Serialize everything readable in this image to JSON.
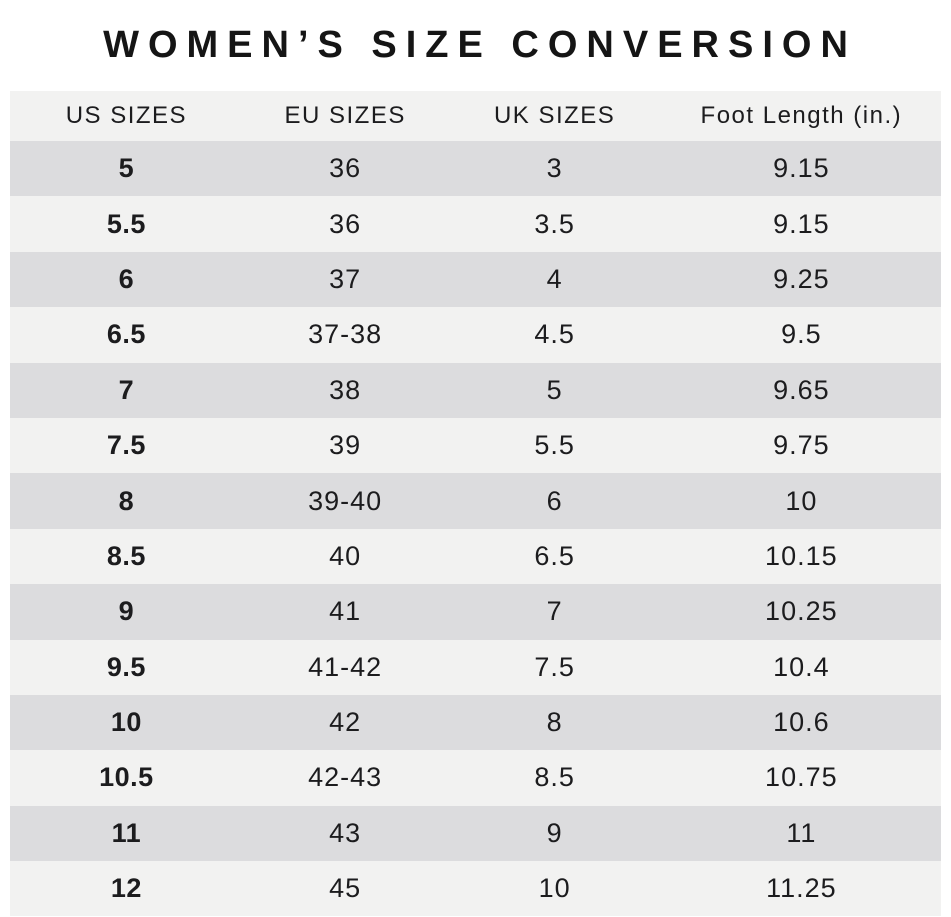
{
  "chart_data": {
    "type": "table",
    "title": "WOMEN’S SIZE CONVERSION",
    "columns": [
      "US SIZES",
      "EU SIZES",
      "UK SIZES",
      "Foot Length (in.)"
    ],
    "rows": [
      [
        "5",
        "36",
        "3",
        "9.15"
      ],
      [
        "5.5",
        "36",
        "3.5",
        "9.15"
      ],
      [
        "6",
        "37",
        "4",
        "9.25"
      ],
      [
        "6.5",
        "37-38",
        "4.5",
        "9.5"
      ],
      [
        "7",
        "38",
        "5",
        "9.65"
      ],
      [
        "7.5",
        "39",
        "5.5",
        "9.75"
      ],
      [
        "8",
        "39-40",
        "6",
        "10"
      ],
      [
        "8.5",
        "40",
        "6.5",
        "10.15"
      ],
      [
        "9",
        "41",
        "7",
        "10.25"
      ],
      [
        "9.5",
        "41-42",
        "7.5",
        "10.4"
      ],
      [
        "10",
        "42",
        "8",
        "10.6"
      ],
      [
        "10.5",
        "42-43",
        "8.5",
        "10.75"
      ],
      [
        "11",
        "43",
        "9",
        "11"
      ],
      [
        "12",
        "45",
        "10",
        "11.25"
      ]
    ],
    "layout": {
      "stripe_start": "gray",
      "stripe_alternation": [
        "gray",
        "light"
      ],
      "us_sizes_column_bold": true
    }
  },
  "colors": {
    "row-gray": "#dcdcde",
    "row-light": "#f2f2f1",
    "header-bg": "#f2f2f1",
    "text": "#1c1c1e",
    "page-bg": "#ffffff"
  }
}
